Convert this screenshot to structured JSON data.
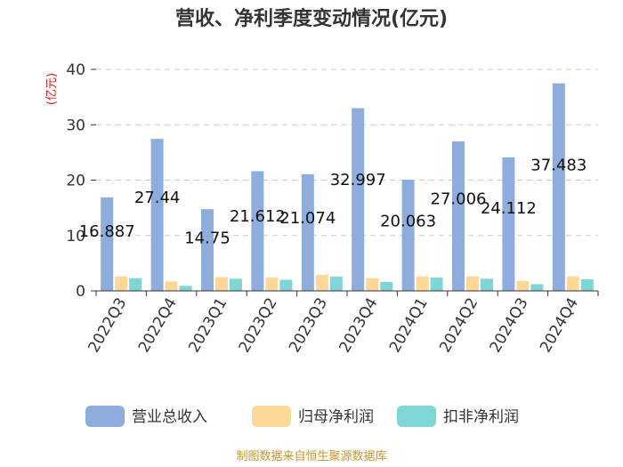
{
  "chart_data": {
    "type": "bar",
    "title": "营收、净利季度变动情况(亿元)",
    "ylabel": "(亿元)",
    "ylim": [
      0,
      40
    ],
    "yticks": [
      0,
      10,
      20,
      30,
      40
    ],
    "grid": true,
    "legend_position": "bottom",
    "categories": [
      "2022Q3",
      "2022Q4",
      "2023Q1",
      "2023Q2",
      "2023Q3",
      "2023Q4",
      "2024Q1",
      "2024Q2",
      "2024Q3",
      "2024Q4"
    ],
    "series": [
      {
        "name": "营业总收入",
        "color": "#8eacdc",
        "values": [
          16.887,
          27.44,
          14.75,
          21.612,
          21.074,
          32.997,
          20.063,
          27.006,
          24.112,
          37.483
        ],
        "labels": [
          "16.887",
          "27.44",
          "14.75",
          "21.612",
          "21.074",
          "32.997",
          "20.063",
          "27.006",
          "24.112",
          "37.483"
        ]
      },
      {
        "name": "归母净利润",
        "color": "#fcd899",
        "values": [
          2.6,
          1.7,
          2.5,
          2.4,
          2.9,
          2.3,
          2.6,
          2.6,
          1.8,
          2.6
        ]
      },
      {
        "name": "扣非净利润",
        "color": "#7fd6d6",
        "values": [
          2.3,
          0.9,
          2.2,
          2.0,
          2.6,
          1.6,
          2.4,
          2.2,
          1.2,
          2.1
        ]
      }
    ]
  },
  "footer": {
    "source": "制图数据来自恒生聚源数据库"
  }
}
